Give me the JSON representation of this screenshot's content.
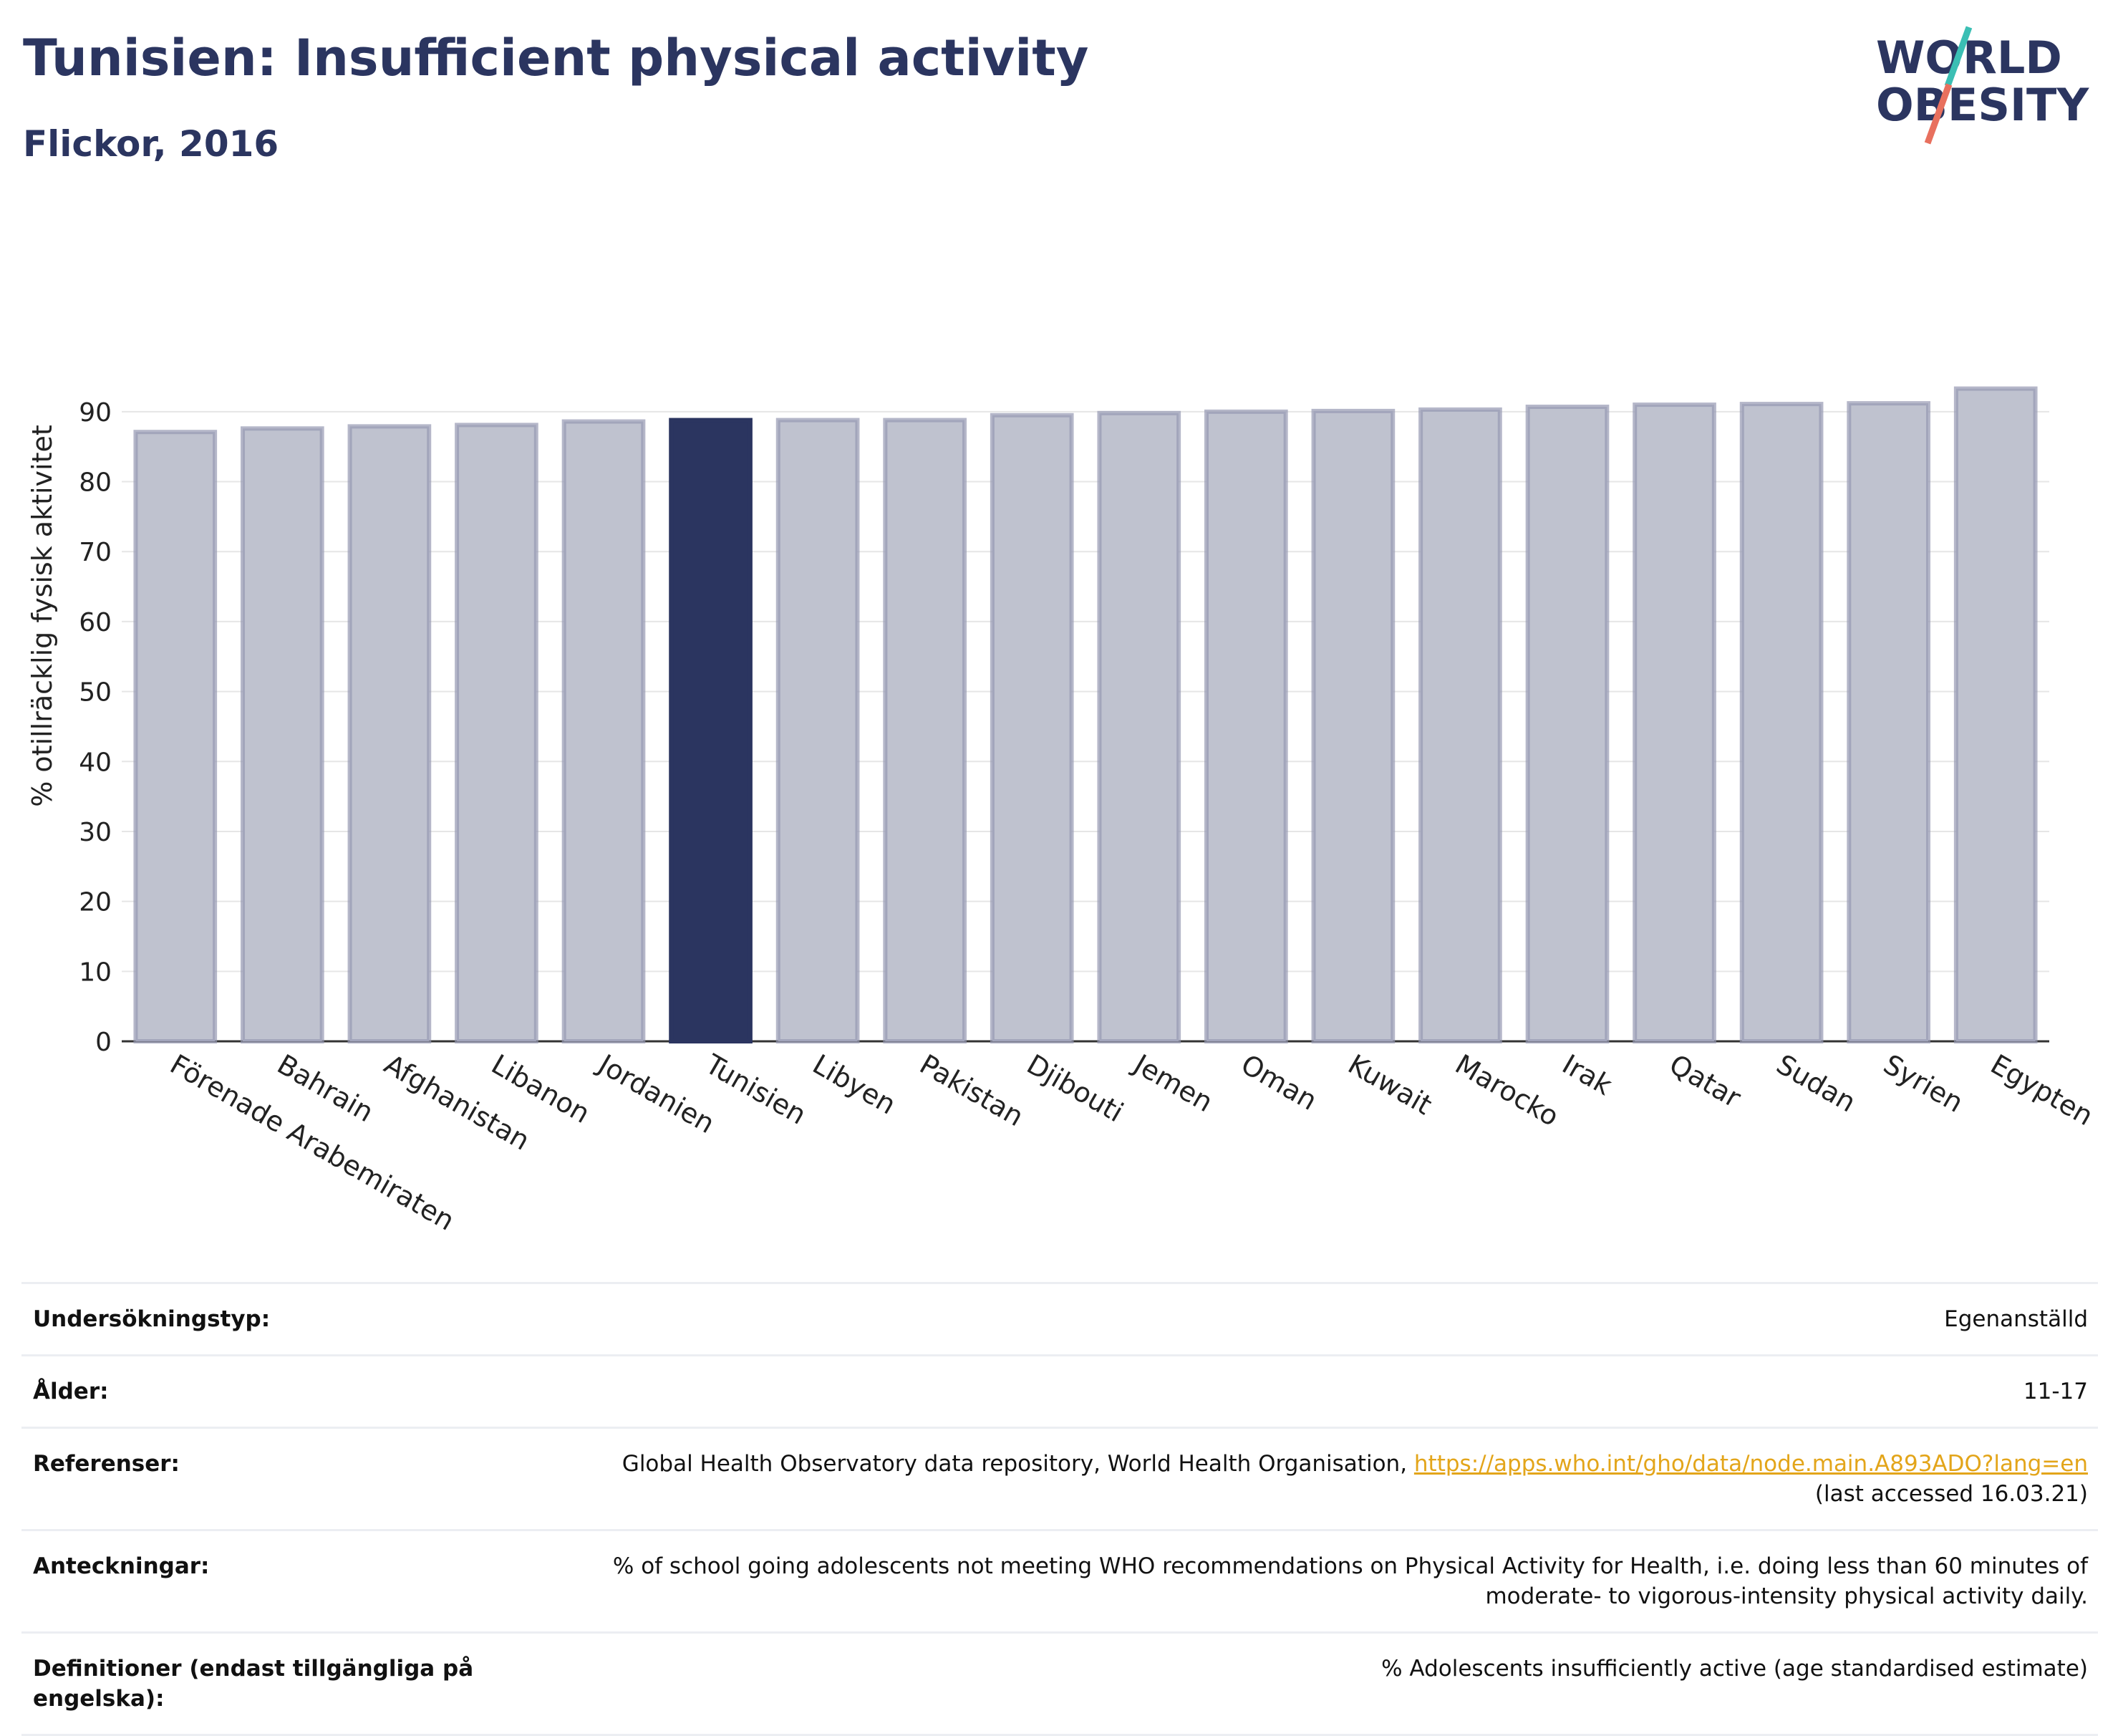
{
  "header": {
    "title": "Tunisien: Insufficient physical activity",
    "subtitle": "Flickor, 2016"
  },
  "logo": {
    "line1": "WORLD",
    "line2": "OBESITY",
    "slash_colors": [
      "#3bbfb4",
      "#e8705e"
    ],
    "text_color": "#2b3560"
  },
  "colors": {
    "highlight_bar": "#2b3560",
    "other_bar_fill": "#bfc2cf",
    "other_bar_stroke": "#9599b2",
    "grid": "#e6e6e6",
    "link": "#e3a51a"
  },
  "chart_data": {
    "type": "bar",
    "ylabel": "% otillräcklig fysisk aktivitet",
    "ylim": [
      0,
      95
    ],
    "yticks": [
      0,
      10,
      20,
      30,
      40,
      50,
      60,
      70,
      80,
      90
    ],
    "grid": true,
    "highlight": "Tunisien",
    "categories": [
      "Förenade Arabemiraten",
      "Bahrain",
      "Afghanistan",
      "Libanon",
      "Jordanien",
      "Tunisien",
      "Libyen",
      "Pakistan",
      "Djibouti",
      "Jemen",
      "Oman",
      "Kuwait",
      "Marocko",
      "Irak",
      "Qatar",
      "Sudan",
      "Syrien",
      "Egypten"
    ],
    "values": [
      87.1,
      87.6,
      87.9,
      88.1,
      88.6,
      88.8,
      88.8,
      88.8,
      89.5,
      89.8,
      90.0,
      90.1,
      90.3,
      90.7,
      91.0,
      91.1,
      91.2,
      93.3
    ]
  },
  "meta": [
    {
      "label": "Undersökningstyp:",
      "value": "Egenanställd"
    },
    {
      "label": "Ålder:",
      "value": "11-17"
    },
    {
      "label": "Referenser:",
      "value": "Global Health Observatory data repository, World Health Organisation,",
      "link": "https://apps.who.int/gho/data/node.main.A893ADO?lang=en",
      "value2": "(last accessed 16.03.21)"
    },
    {
      "label": "Anteckningar:",
      "value": "% of school going adolescents not meeting WHO recommendations on Physical Activity for Health, i.e. doing less than 60 minutes of moderate- to vigorous-intensity physical activity daily."
    },
    {
      "label": "Definitioner (endast tillgängliga på engelska):",
      "value": "% Adolescents insufficiently active (age standardised estimate)"
    }
  ]
}
